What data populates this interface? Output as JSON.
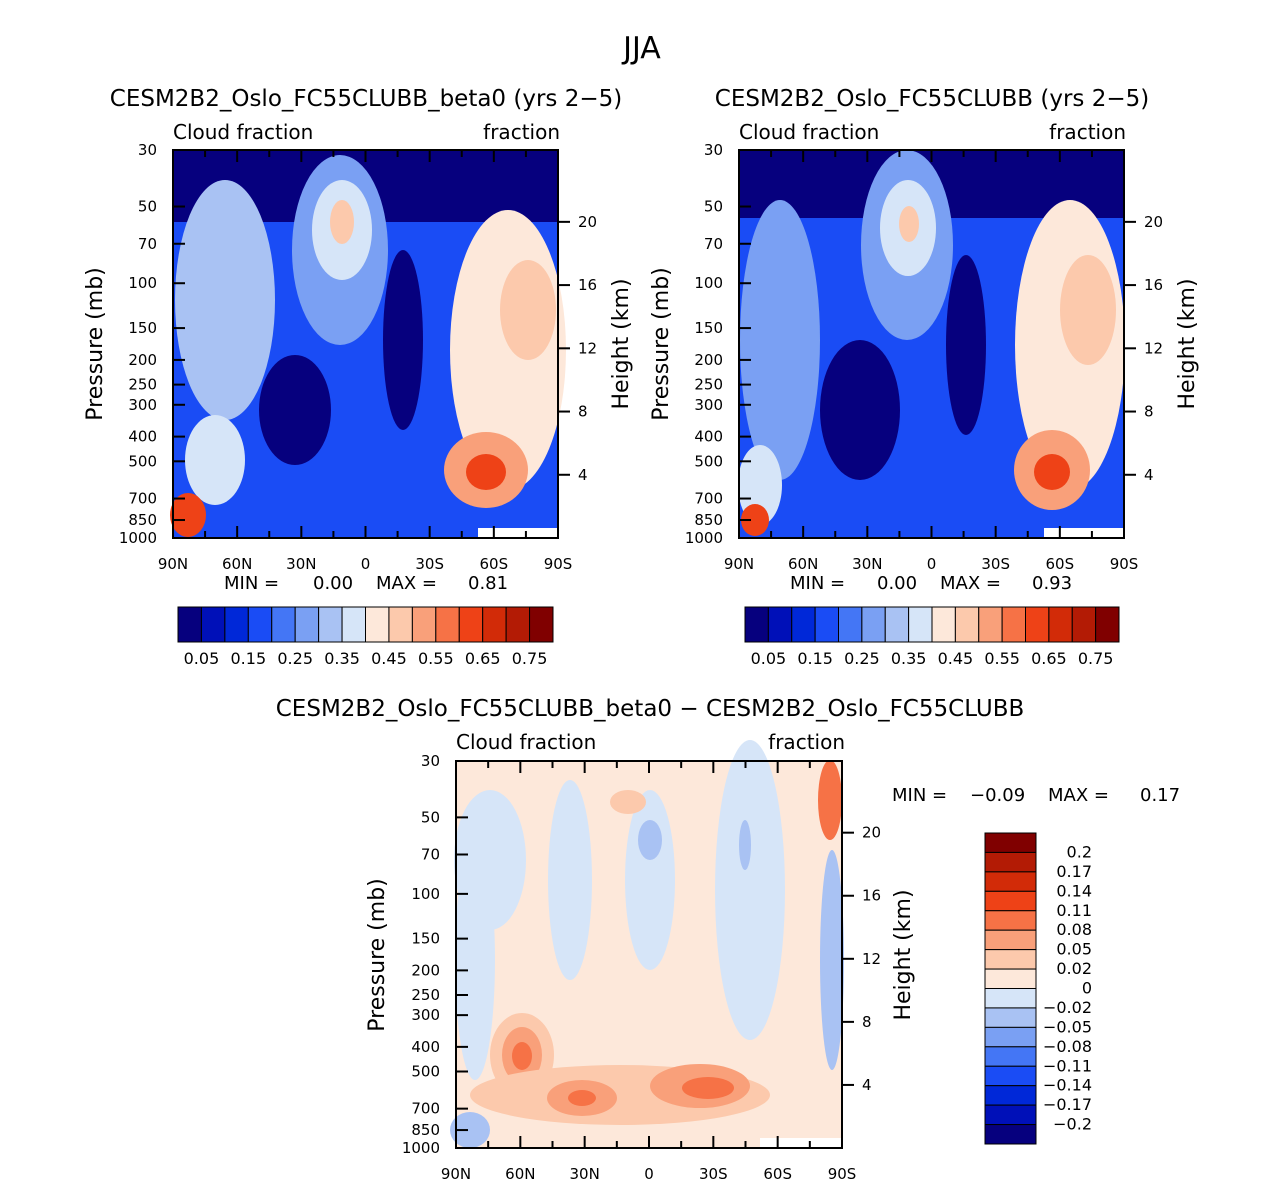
{
  "figure_title": "JJA",
  "chart_data": [
    {
      "type": "heatmap",
      "title": "CESM2B2_Oslo_FC55CLUBB_beta0 (yrs 2-5)",
      "left_label": "Cloud fraction",
      "right_label": "fraction",
      "ylabel": "Pressure (mb)",
      "y2label": "Height (km)",
      "x_ticks": [
        "90N",
        "60N",
        "30N",
        "0",
        "30S",
        "60S",
        "90S"
      ],
      "y_ticks": [
        30,
        50,
        70,
        100,
        150,
        200,
        250,
        300,
        400,
        500,
        700,
        850,
        1000
      ],
      "y2_ticks": [
        20,
        16,
        12,
        8,
        4
      ],
      "xlim": [
        90,
        -90
      ],
      "ylim": [
        1000,
        30
      ],
      "min_label": "MIN =",
      "min_value": "0.00",
      "max_label": "MAX =",
      "max_value": "0.81",
      "colorbar_labels": [
        "0.05",
        "0.15",
        "0.25",
        "0.35",
        "0.45",
        "0.55",
        "0.65",
        "0.75"
      ],
      "colors": [
        "#06007e",
        "#0010b8",
        "#0028d8",
        "#1a4cf5",
        "#4476f5",
        "#7aa0f3",
        "#a9c2f3",
        "#d6e5f8",
        "#fde8da",
        "#fcc9ac",
        "#f9a07a",
        "#f67246",
        "#ee4217",
        "#d22b08",
        "#b31b05",
        "#800000"
      ]
    },
    {
      "type": "heatmap",
      "title": "CESM2B2_Oslo_FC55CLUBB (yrs 2-5)",
      "left_label": "Cloud fraction",
      "right_label": "fraction",
      "ylabel": "Pressure (mb)",
      "y2label": "Height (km)",
      "x_ticks": [
        "90N",
        "60N",
        "30N",
        "0",
        "30S",
        "60S",
        "90S"
      ],
      "y_ticks": [
        30,
        50,
        70,
        100,
        150,
        200,
        250,
        300,
        400,
        500,
        700,
        850,
        1000
      ],
      "y2_ticks": [
        20,
        16,
        12,
        8,
        4
      ],
      "xlim": [
        90,
        -90
      ],
      "ylim": [
        1000,
        30
      ],
      "min_label": "MIN =",
      "min_value": "0.00",
      "max_label": "MAX =",
      "max_value": "0.93",
      "colorbar_labels": [
        "0.05",
        "0.15",
        "0.25",
        "0.35",
        "0.45",
        "0.55",
        "0.65",
        "0.75"
      ],
      "colors": [
        "#06007e",
        "#0010b8",
        "#0028d8",
        "#1a4cf5",
        "#4476f5",
        "#7aa0f3",
        "#a9c2f3",
        "#d6e5f8",
        "#fde8da",
        "#fcc9ac",
        "#f9a07a",
        "#f67246",
        "#ee4217",
        "#d22b08",
        "#b31b05",
        "#800000"
      ]
    },
    {
      "type": "heatmap",
      "title": "CESM2B2_Oslo_FC55CLUBB_beta0 - CESM2B2_Oslo_FC55CLUBB",
      "left_label": "Cloud fraction",
      "right_label": "fraction",
      "ylabel": "Pressure (mb)",
      "y2label": "Height (km)",
      "x_ticks": [
        "90N",
        "60N",
        "30N",
        "0",
        "30S",
        "60S",
        "90S"
      ],
      "y_ticks": [
        30,
        50,
        70,
        100,
        150,
        200,
        250,
        300,
        400,
        500,
        700,
        850,
        1000
      ],
      "y2_ticks": [
        20,
        16,
        12,
        8,
        4
      ],
      "xlim": [
        90,
        -90
      ],
      "ylim": [
        1000,
        30
      ],
      "min_label": "MIN =",
      "min_value": "-0.09",
      "max_label": "MAX =",
      "max_value": "0.17",
      "colorbar_labels": [
        "0.2",
        "0.17",
        "0.14",
        "0.11",
        "0.08",
        "0.05",
        "0.02",
        "0",
        "-0.02",
        "-0.05",
        "-0.08",
        "-0.11",
        "-0.14",
        "-0.17",
        "-0.2"
      ],
      "colors": [
        "#800000",
        "#b31b05",
        "#d22b08",
        "#ee4217",
        "#f67246",
        "#f9a07a",
        "#fcc9ac",
        "#fde8da",
        "#d6e5f8",
        "#a9c2f3",
        "#7aa0f3",
        "#4476f5",
        "#1a4cf5",
        "#0028d8",
        "#0010b8",
        "#06007e"
      ]
    }
  ]
}
